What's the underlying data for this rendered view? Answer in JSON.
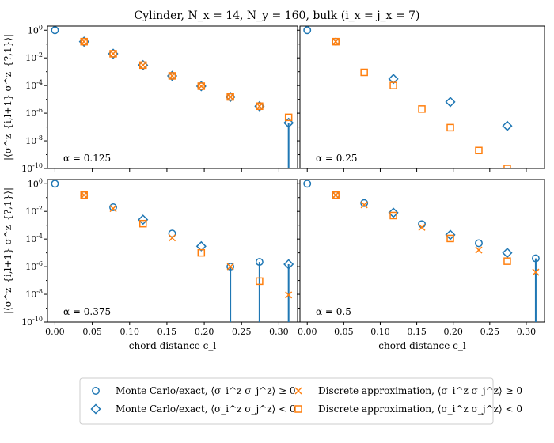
{
  "title": "Cylinder, N_x = 14, N_y = 160, bulk (i_x = j_x = 7)",
  "colors": {
    "mc": "#1f77b4",
    "approx": "#ff7f0e",
    "axis": "#000000",
    "legend_border": "#cccccc"
  },
  "legend": {
    "entries": [
      {
        "marker": "circle",
        "color": "#1f77b4",
        "label": "Monte Carlo/exact, ⟨σ_i^z σ_j^z⟩ ≥ 0"
      },
      {
        "marker": "diamond",
        "color": "#1f77b4",
        "label": "Monte Carlo/exact, ⟨σ_i^z σ_j^z⟩ < 0"
      },
      {
        "marker": "x",
        "color": "#ff7f0e",
        "label": "Discrete approximation, ⟨σ_i^z σ_j^z⟩ ≥ 0"
      },
      {
        "marker": "square",
        "color": "#ff7f0e",
        "label": "Discrete approximation, ⟨σ_i^z σ_j^z⟩ < 0"
      }
    ]
  },
  "chart_data": [
    {
      "type": "scatter",
      "panel": "top-left",
      "annotation": "α = 0.125",
      "xlabel": "",
      "ylabel": "|⟨σ^z_{i,l+1} σ^z_{?,1}⟩|",
      "yscale": "log",
      "xlim": [
        -0.01,
        0.325
      ],
      "ylim": [
        1e-10,
        2
      ],
      "x_ticks": [
        "0.00",
        "0.05",
        "0.10",
        "0.15",
        "0.20",
        "0.25",
        "0.30"
      ],
      "y_ticks": [
        "10^0",
        "10^-2",
        "10^-4",
        "10^-6",
        "10^-8",
        "10^-10"
      ],
      "series": [
        {
          "name": "mc_pos",
          "marker": "circle",
          "x": [
            0,
            0.039,
            0.078,
            0.118,
            0.157,
            0.196,
            0.235,
            0.274
          ],
          "y": [
            1,
            0.15,
            0.02,
            0.003,
            0.0005,
            9e-05,
            1.5e-05,
            3.2e-06
          ]
        },
        {
          "name": "mc_neg",
          "marker": "diamond",
          "x": [
            0.039,
            0.078,
            0.118,
            0.157,
            0.196,
            0.235,
            0.274,
            0.313
          ],
          "y": [
            0.15,
            0.02,
            0.003,
            0.0005,
            9e-05,
            1.5e-05,
            3.2e-06,
            2e-07
          ]
        },
        {
          "name": "approx_pos",
          "marker": "x",
          "x": [
            0.039,
            0.078,
            0.118,
            0.157,
            0.196,
            0.235,
            0.274
          ],
          "y": [
            0.15,
            0.02,
            0.003,
            0.0005,
            9e-05,
            1.5e-05,
            3.2e-06
          ]
        },
        {
          "name": "approx_neg",
          "marker": "square",
          "x": [
            0.039,
            0.078,
            0.118,
            0.157,
            0.196,
            0.235,
            0.274,
            0.313
          ],
          "y": [
            0.15,
            0.02,
            0.003,
            0.0005,
            9e-05,
            1.5e-05,
            3.2e-06,
            5e-07
          ]
        }
      ],
      "stems": [
        {
          "x": 0.313,
          "y": 2e-07
        }
      ]
    },
    {
      "type": "scatter",
      "panel": "top-right",
      "annotation": "α = 0.25",
      "xlabel": "",
      "ylabel": "",
      "yscale": "log",
      "xlim": [
        -0.01,
        0.325
      ],
      "ylim": [
        1e-10,
        2
      ],
      "x_ticks": [
        "0.00",
        "0.05",
        "0.10",
        "0.15",
        "0.20",
        "0.25",
        "0.30"
      ],
      "y_ticks": [],
      "series": [
        {
          "name": "mc_pos",
          "marker": "circle",
          "x": [
            0,
            0.039
          ],
          "y": [
            1,
            0.15
          ]
        },
        {
          "name": "mc_neg",
          "marker": "diamond",
          "x": [
            0.118,
            0.196,
            0.274
          ],
          "y": [
            0.0003,
            6.5e-06,
            1.2e-07
          ]
        },
        {
          "name": "approx_pos",
          "marker": "x",
          "x": [
            0.039
          ],
          "y": [
            0.15
          ]
        },
        {
          "name": "approx_neg",
          "marker": "square",
          "x": [
            0.039,
            0.078,
            0.118,
            0.157,
            0.196,
            0.235,
            0.274
          ],
          "y": [
            0.15,
            0.0009,
            0.0001,
            2e-06,
            9e-08,
            2e-09,
            1e-10
          ]
        }
      ],
      "stems": []
    },
    {
      "type": "scatter",
      "panel": "bottom-left",
      "annotation": "α = 0.375",
      "xlabel": "chord distance c_l",
      "ylabel": "|⟨σ^z_{i,l+1} σ^z_{?,1}⟩|",
      "yscale": "log",
      "xlim": [
        -0.01,
        0.325
      ],
      "ylim": [
        1e-10,
        2
      ],
      "x_ticks": [
        "0.00",
        "0.05",
        "0.10",
        "0.15",
        "0.20",
        "0.25",
        "0.30"
      ],
      "y_ticks": [
        "10^0",
        "10^-2",
        "10^-4",
        "10^-6",
        "10^-8",
        "10^-10"
      ],
      "series": [
        {
          "name": "mc_pos",
          "marker": "circle",
          "x": [
            0,
            0.039,
            0.078,
            0.157,
            0.235,
            0.274
          ],
          "y": [
            1,
            0.15,
            0.02,
            0.00025,
            1e-06,
            2.2e-06
          ]
        },
        {
          "name": "mc_neg",
          "marker": "diamond",
          "x": [
            0.118,
            0.196,
            0.313
          ],
          "y": [
            0.0025,
            3e-05,
            1.5e-06
          ]
        },
        {
          "name": "approx_pos",
          "marker": "x",
          "x": [
            0.039,
            0.078,
            0.157,
            0.235,
            0.313
          ],
          "y": [
            0.15,
            0.016,
            0.00012,
            1e-06,
            9e-09
          ]
        },
        {
          "name": "approx_neg",
          "marker": "square",
          "x": [
            0.039,
            0.118,
            0.196,
            0.274
          ],
          "y": [
            0.15,
            0.0013,
            1e-05,
            9e-08
          ]
        }
      ],
      "stems": [
        {
          "x": 0.235,
          "y": 1e-06
        },
        {
          "x": 0.274,
          "y": 2.2e-06
        },
        {
          "x": 0.313,
          "y": 1.5e-06
        }
      ]
    },
    {
      "type": "scatter",
      "panel": "bottom-right",
      "annotation": "α = 0.5",
      "xlabel": "chord distance c_l",
      "ylabel": "",
      "yscale": "log",
      "xlim": [
        -0.01,
        0.325
      ],
      "ylim": [
        1e-10,
        2
      ],
      "x_ticks": [
        "0.00",
        "0.05",
        "0.10",
        "0.15",
        "0.20",
        "0.25",
        "0.30"
      ],
      "y_ticks": [],
      "series": [
        {
          "name": "mc_pos",
          "marker": "circle",
          "x": [
            0,
            0.039,
            0.078,
            0.157,
            0.235,
            0.313
          ],
          "y": [
            1,
            0.15,
            0.04,
            0.0012,
            5e-05,
            4e-06
          ]
        },
        {
          "name": "mc_neg",
          "marker": "diamond",
          "x": [
            0.118,
            0.196,
            0.274
          ],
          "y": [
            0.008,
            0.0002,
            1e-05
          ]
        },
        {
          "name": "approx_pos",
          "marker": "x",
          "x": [
            0.039,
            0.078,
            0.157,
            0.235,
            0.313
          ],
          "y": [
            0.15,
            0.03,
            0.0007,
            1.6e-05,
            4e-07
          ]
        },
        {
          "name": "approx_neg",
          "marker": "square",
          "x": [
            0.039,
            0.118,
            0.196,
            0.274
          ],
          "y": [
            0.15,
            0.005,
            0.00011,
            2.5e-06
          ]
        }
      ],
      "stems": [
        {
          "x": 0.313,
          "y": 4e-06
        }
      ]
    }
  ]
}
